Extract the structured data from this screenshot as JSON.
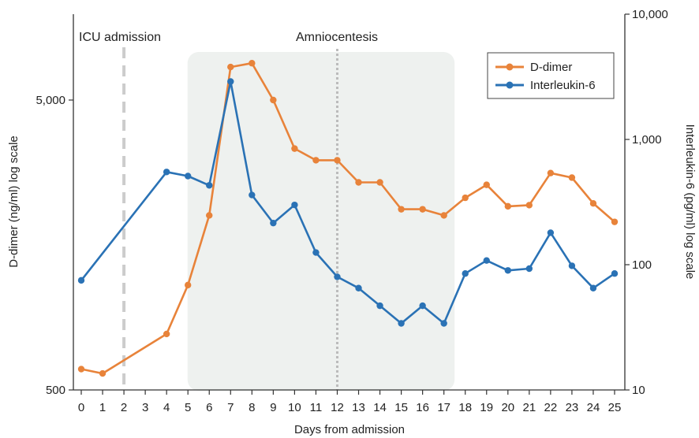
{
  "chart_data": {
    "type": "line",
    "xlabel": "Days from admission",
    "x": [
      0,
      1,
      2,
      3,
      4,
      5,
      6,
      7,
      8,
      9,
      10,
      11,
      12,
      13,
      14,
      15,
      16,
      17,
      18,
      19,
      20,
      21,
      22,
      23,
      24,
      25
    ],
    "xlim": [
      0,
      25
    ],
    "y_left": {
      "label": "D-dimer (ng/ml) log scale",
      "scale": "log",
      "range": [
        500,
        10000
      ],
      "ticks": [
        500,
        5000
      ],
      "tick_labels": [
        "500",
        "5,000"
      ]
    },
    "y_right": {
      "label": "Interleukin-6 (pg/ml) log scale",
      "scale": "log",
      "range": [
        10,
        10000
      ],
      "ticks": [
        10,
        100,
        1000,
        10000
      ],
      "tick_labels": [
        "10",
        "100",
        "1,000",
        "10,000"
      ]
    },
    "series": [
      {
        "name": "D-dimer",
        "axis": "left",
        "color": "#E8833A",
        "points": [
          [
            0,
            590
          ],
          [
            1,
            570
          ],
          [
            4,
            780
          ],
          [
            5,
            1150
          ],
          [
            6,
            2000
          ],
          [
            7,
            6500
          ],
          [
            8,
            6700
          ],
          [
            9,
            5000
          ],
          [
            10,
            3400
          ],
          [
            11,
            3100
          ],
          [
            12,
            3100
          ],
          [
            13,
            2600
          ],
          [
            14,
            2600
          ],
          [
            15,
            2100
          ],
          [
            16,
            2100
          ],
          [
            17,
            2000
          ],
          [
            18,
            2300
          ],
          [
            19,
            2550
          ],
          [
            20,
            2150
          ],
          [
            21,
            2170
          ],
          [
            22,
            2800
          ],
          [
            23,
            2700
          ],
          [
            24,
            2200
          ],
          [
            25,
            1900
          ]
        ]
      },
      {
        "name": "Interleukin-6",
        "axis": "right",
        "color": "#2A72B5",
        "points": [
          [
            0,
            75
          ],
          [
            4,
            550
          ],
          [
            5,
            510
          ],
          [
            6,
            430
          ],
          [
            7,
            2900
          ],
          [
            8,
            360
          ],
          [
            9,
            215
          ],
          [
            10,
            300
          ],
          [
            11,
            125
          ],
          [
            12,
            80
          ],
          [
            13,
            65
          ],
          [
            14,
            47
          ],
          [
            15,
            34
          ],
          [
            16,
            47
          ],
          [
            17,
            34
          ],
          [
            18,
            85
          ],
          [
            19,
            108
          ],
          [
            20,
            90
          ],
          [
            21,
            93
          ],
          [
            22,
            180
          ],
          [
            23,
            98
          ],
          [
            24,
            65
          ],
          [
            25,
            85
          ]
        ]
      }
    ],
    "annotations": [
      {
        "label": "ICU admission",
        "x": 2,
        "style": "dashed"
      },
      {
        "label": "Amniocentesis",
        "x": 12,
        "style": "dotted"
      }
    ],
    "shaded_region": [
      5.5,
      17.5
    ],
    "legend_position": "top-right",
    "grid": false,
    "colors": {
      "shade": "#EEF1EF",
      "icu_line": "#CCCCCC",
      "amnio_line": "#BBBBBB",
      "axis": "#333333"
    }
  }
}
